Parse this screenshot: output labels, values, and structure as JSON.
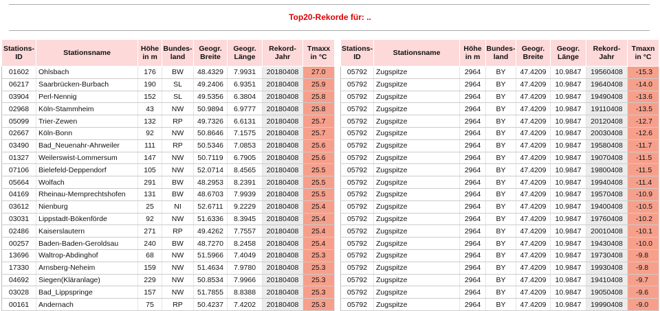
{
  "header": {
    "title": "Top20-Rekorde für: .."
  },
  "tables": [
    {
      "columns": [
        "Stations-\nID",
        "Stationsname",
        "Höhe\nin m",
        "Bundes-\nland",
        "Geogr.\nBreite",
        "Geogr.\nLänge",
        "Rekord-\nJahr",
        "Tmaxx\nin °C"
      ],
      "rows": [
        [
          "01602",
          "Ohlsbach",
          "176",
          "BW",
          "48.4329",
          "7.9931",
          "20180408",
          "27.0"
        ],
        [
          "06217",
          "Saarbrücken-Burbach",
          "190",
          "SL",
          "49.2406",
          "6.9351",
          "20180408",
          "25.9"
        ],
        [
          "03904",
          "Perl-Nennig",
          "152",
          "SL",
          "49.5356",
          "6.3804",
          "20180408",
          "25.8"
        ],
        [
          "02968",
          "Köln-Stammheim",
          "43",
          "NW",
          "50.9894",
          "6.9777",
          "20180408",
          "25.8"
        ],
        [
          "05099",
          "Trier-Zewen",
          "132",
          "RP",
          "49.7326",
          "6.6131",
          "20180408",
          "25.7"
        ],
        [
          "02667",
          "Köln-Bonn",
          "92",
          "NW",
          "50.8646",
          "7.1575",
          "20180408",
          "25.7"
        ],
        [
          "03490",
          "Bad_Neuenahr-Ahrweiler",
          "111",
          "RP",
          "50.5346",
          "7.0853",
          "20180408",
          "25.6"
        ],
        [
          "01327",
          "Weilerswist-Lommersum",
          "147",
          "NW",
          "50.7119",
          "6.7905",
          "20180408",
          "25.6"
        ],
        [
          "07106",
          "Bielefeld-Deppendorf",
          "105",
          "NW",
          "52.0714",
          "8.4565",
          "20180408",
          "25.5"
        ],
        [
          "05664",
          "Wolfach",
          "291",
          "BW",
          "48.2953",
          "8.2391",
          "20180408",
          "25.5"
        ],
        [
          "04169",
          "Rheinau-Memprechtshofen",
          "131",
          "BW",
          "48.6703",
          "7.9939",
          "20180408",
          "25.5"
        ],
        [
          "03612",
          "Nienburg",
          "25",
          "NI",
          "52.6711",
          "9.2229",
          "20180408",
          "25.4"
        ],
        [
          "03031",
          "Lippstadt-Bökenförde",
          "92",
          "NW",
          "51.6336",
          "8.3945",
          "20180408",
          "25.4"
        ],
        [
          "02486",
          "Kaiserslautern",
          "271",
          "RP",
          "49.4262",
          "7.7557",
          "20180408",
          "25.4"
        ],
        [
          "00257",
          "Baden-Baden-Geroldsau",
          "240",
          "BW",
          "48.7270",
          "8.2458",
          "20180408",
          "25.4"
        ],
        [
          "13696",
          "Waltrop-Abdinghof",
          "68",
          "NW",
          "51.5966",
          "7.4049",
          "20180408",
          "25.3"
        ],
        [
          "17330",
          "Arnsberg-Neheim",
          "159",
          "NW",
          "51.4634",
          "7.9780",
          "20180408",
          "25.3"
        ],
        [
          "04692",
          "Siegen(Kläranlage)",
          "229",
          "NW",
          "50.8534",
          "7.9966",
          "20180408",
          "25.3"
        ],
        [
          "03028",
          "Bad_Lippspringe",
          "157",
          "NW",
          "51.7855",
          "8.8388",
          "20180408",
          "25.3"
        ],
        [
          "00161",
          "Andernach",
          "75",
          "RP",
          "50.4237",
          "7.4202",
          "20180408",
          "25.3"
        ]
      ]
    },
    {
      "columns": [
        "Stations-\nID",
        "Stationsname",
        "Höhe\nin m",
        "Bundes-\nland",
        "Geogr.\nBreite",
        "Geogr.\nLänge",
        "Rekord-\nJahr",
        "Tmaxn\nin °C"
      ],
      "rows": [
        [
          "05792",
          "Zugspitze",
          "2964",
          "BY",
          "47.4209",
          "10.9847",
          "19560408",
          "-15.3"
        ],
        [
          "05792",
          "Zugspitze",
          "2964",
          "BY",
          "47.4209",
          "10.9847",
          "19640408",
          "-14.0"
        ],
        [
          "05792",
          "Zugspitze",
          "2964",
          "BY",
          "47.4209",
          "10.9847",
          "19490408",
          "-13.6"
        ],
        [
          "05792",
          "Zugspitze",
          "2964",
          "BY",
          "47.4209",
          "10.9847",
          "19110408",
          "-13.5"
        ],
        [
          "05792",
          "Zugspitze",
          "2964",
          "BY",
          "47.4209",
          "10.9847",
          "20120408",
          "-12.7"
        ],
        [
          "05792",
          "Zugspitze",
          "2964",
          "BY",
          "47.4209",
          "10.9847",
          "20030408",
          "-12.6"
        ],
        [
          "05792",
          "Zugspitze",
          "2964",
          "BY",
          "47.4209",
          "10.9847",
          "19580408",
          "-11.7"
        ],
        [
          "05792",
          "Zugspitze",
          "2964",
          "BY",
          "47.4209",
          "10.9847",
          "19070408",
          "-11.5"
        ],
        [
          "05792",
          "Zugspitze",
          "2964",
          "BY",
          "47.4209",
          "10.9847",
          "19800408",
          "-11.5"
        ],
        [
          "05792",
          "Zugspitze",
          "2964",
          "BY",
          "47.4209",
          "10.9847",
          "19940408",
          "-11.4"
        ],
        [
          "05792",
          "Zugspitze",
          "2964",
          "BY",
          "47.4209",
          "10.9847",
          "19570408",
          "-10.9"
        ],
        [
          "05792",
          "Zugspitze",
          "2964",
          "BY",
          "47.4209",
          "10.9847",
          "19400408",
          "-10.5"
        ],
        [
          "05792",
          "Zugspitze",
          "2964",
          "BY",
          "47.4209",
          "10.9847",
          "19760408",
          "-10.2"
        ],
        [
          "05792",
          "Zugspitze",
          "2964",
          "BY",
          "47.4209",
          "10.9847",
          "20010408",
          "-10.1"
        ],
        [
          "05792",
          "Zugspitze",
          "2964",
          "BY",
          "47.4209",
          "10.9847",
          "19430408",
          "-10.0"
        ],
        [
          "05792",
          "Zugspitze",
          "2964",
          "BY",
          "47.4209",
          "10.9847",
          "19730408",
          "-9.8"
        ],
        [
          "05792",
          "Zugspitze",
          "2964",
          "BY",
          "47.4209",
          "10.9847",
          "19930408",
          "-9.8"
        ],
        [
          "05792",
          "Zugspitze",
          "2964",
          "BY",
          "47.4209",
          "10.9847",
          "19410408",
          "-9.7"
        ],
        [
          "05792",
          "Zugspitze",
          "2964",
          "BY",
          "47.4209",
          "10.9847",
          "19050408",
          "-9.6"
        ],
        [
          "05792",
          "Zugspitze",
          "2964",
          "BY",
          "47.4209",
          "10.9847",
          "19990408",
          "-9.0"
        ]
      ]
    }
  ]
}
